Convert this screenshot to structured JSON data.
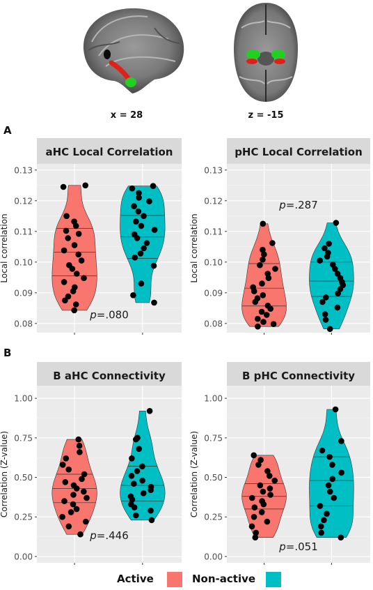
{
  "brain_labels": {
    "sagittal": "x = 28",
    "axial": "z = -15"
  },
  "section_labels": {
    "a": "A",
    "b": "B"
  },
  "colors": {
    "active": "#f8766d",
    "nonactive": "#00bfc4",
    "panel_bg": "#ebebeb",
    "strip_bg": "#d9d9d9",
    "roi_green": "#22d022",
    "roi_red": "#e0201a"
  },
  "legend": {
    "active_label": "Active",
    "nonactive_label": "Non-active"
  },
  "chart_data": [
    {
      "type": "violin",
      "title": "aHC Local Correlation",
      "ylabel": "Local correlation",
      "ylim": [
        0.077,
        0.132
      ],
      "yticks": [
        "0.08",
        "0.09",
        "0.10",
        "0.11",
        "0.12",
        "0.13"
      ],
      "ytick_values": [
        0.08,
        0.09,
        0.1,
        0.11,
        0.12,
        0.13
      ],
      "annotation": "=.080",
      "annotation_p": "p",
      "annotation_y": 0.0817,
      "series": [
        {
          "name": "Active",
          "quartiles": [
            0.0955,
            0.1032,
            0.111
          ],
          "min": 0.0843,
          "max": 0.125,
          "points": [
            0.0843,
            0.0862,
            0.0875,
            0.0888,
            0.0905,
            0.0918,
            0.0935,
            0.0948,
            0.0962,
            0.0978,
            0.099,
            0.1005,
            0.1025,
            0.1038,
            0.1055,
            0.1078,
            0.1092,
            0.1102,
            0.1118,
            0.1132,
            0.115,
            0.1245,
            0.125
          ]
        },
        {
          "name": "Non-active",
          "quartiles": [
            0.1012,
            0.1082,
            0.1152
          ],
          "min": 0.0868,
          "max": 0.1248,
          "points": [
            0.0868,
            0.0892,
            0.093,
            0.0988,
            0.1015,
            0.1028,
            0.1045,
            0.1062,
            0.1078,
            0.109,
            0.1105,
            0.1118,
            0.1132,
            0.115,
            0.1165,
            0.1182,
            0.1198,
            0.121,
            0.1225,
            0.124,
            0.1248
          ]
        }
      ]
    },
    {
      "type": "violin",
      "title": "pHC Local Correlation",
      "ylabel": "Local correlation",
      "ylim": [
        0.077,
        0.132
      ],
      "yticks": [
        "0.08",
        "0.09",
        "0.10",
        "0.11",
        "0.12",
        "0.13"
      ],
      "ytick_values": [
        0.08,
        0.09,
        0.1,
        0.11,
        0.12,
        0.13
      ],
      "annotation": "=.287",
      "annotation_p": "p",
      "annotation_y": 0.1175,
      "series": [
        {
          "name": "Active",
          "quartiles": [
            0.0857,
            0.0915,
            0.0995
          ],
          "min": 0.079,
          "max": 0.1125,
          "points": [
            0.079,
            0.0798,
            0.0805,
            0.0815,
            0.0828,
            0.0838,
            0.0848,
            0.0858,
            0.087,
            0.0882,
            0.0892,
            0.0905,
            0.0918,
            0.093,
            0.0948,
            0.0962,
            0.0978,
            0.099,
            0.1008,
            0.1025,
            0.104,
            0.1062,
            0.1125
          ]
        },
        {
          "name": "Non-active",
          "quartiles": [
            0.0888,
            0.0938,
            0.1
          ],
          "min": 0.0782,
          "max": 0.1128,
          "points": [
            0.0782,
            0.0812,
            0.083,
            0.0852,
            0.087,
            0.0885,
            0.0898,
            0.0912,
            0.0925,
            0.0935,
            0.0948,
            0.0962,
            0.0978,
            0.0992,
            0.1005,
            0.1018,
            0.103,
            0.1045,
            0.106,
            0.1128
          ]
        }
      ]
    },
    {
      "type": "violin",
      "title": "B aHC Connectivity",
      "ylabel": "Correlation (Z-value)",
      "ylim": [
        -0.04,
        1.08
      ],
      "yticks": [
        "0.00",
        "0.25",
        "0.50",
        "0.75",
        "1.00"
      ],
      "ytick_values": [
        0.0,
        0.25,
        0.5,
        0.75,
        1.0
      ],
      "annotation": "=.446",
      "annotation_p": "p",
      "annotation_y": 0.11,
      "series": [
        {
          "name": "Active",
          "quartiles": [
            0.34,
            0.43,
            0.52
          ],
          "min": 0.14,
          "max": 0.74,
          "points": [
            0.14,
            0.19,
            0.22,
            0.25,
            0.28,
            0.3,
            0.33,
            0.35,
            0.37,
            0.39,
            0.41,
            0.43,
            0.45,
            0.47,
            0.49,
            0.52,
            0.55,
            0.58,
            0.62,
            0.66,
            0.7,
            0.74
          ]
        },
        {
          "name": "Non-active",
          "quartiles": [
            0.35,
            0.45,
            0.57
          ],
          "min": 0.23,
          "max": 0.92,
          "points": [
            0.23,
            0.26,
            0.29,
            0.31,
            0.33,
            0.36,
            0.38,
            0.4,
            0.42,
            0.44,
            0.46,
            0.48,
            0.51,
            0.54,
            0.57,
            0.62,
            0.68,
            0.74,
            0.75,
            0.92
          ]
        }
      ]
    },
    {
      "type": "violin",
      "title": "B pHC Connectivity",
      "ylabel": "Correlation (Z-value)",
      "ylim": [
        -0.04,
        1.08
      ],
      "yticks": [
        "0.00",
        "0.25",
        "0.50",
        "0.75",
        "1.00"
      ],
      "ytick_values": [
        0.0,
        0.25,
        0.5,
        0.75,
        1.0
      ],
      "annotation": "=.051",
      "annotation_p": "p",
      "annotation_y": 0.04,
      "series": [
        {
          "name": "Active",
          "quartiles": [
            0.3,
            0.38,
            0.46
          ],
          "min": 0.12,
          "max": 0.64,
          "points": [
            0.12,
            0.15,
            0.19,
            0.22,
            0.25,
            0.28,
            0.31,
            0.33,
            0.35,
            0.37,
            0.39,
            0.41,
            0.43,
            0.45,
            0.48,
            0.51,
            0.54,
            0.58,
            0.61,
            0.64
          ]
        },
        {
          "name": "Non-active",
          "quartiles": [
            0.32,
            0.48,
            0.63
          ],
          "min": 0.12,
          "max": 0.93,
          "points": [
            0.12,
            0.15,
            0.19,
            0.23,
            0.27,
            0.32,
            0.37,
            0.41,
            0.45,
            0.49,
            0.53,
            0.58,
            0.63,
            0.67,
            0.73,
            0.93
          ]
        }
      ]
    }
  ]
}
